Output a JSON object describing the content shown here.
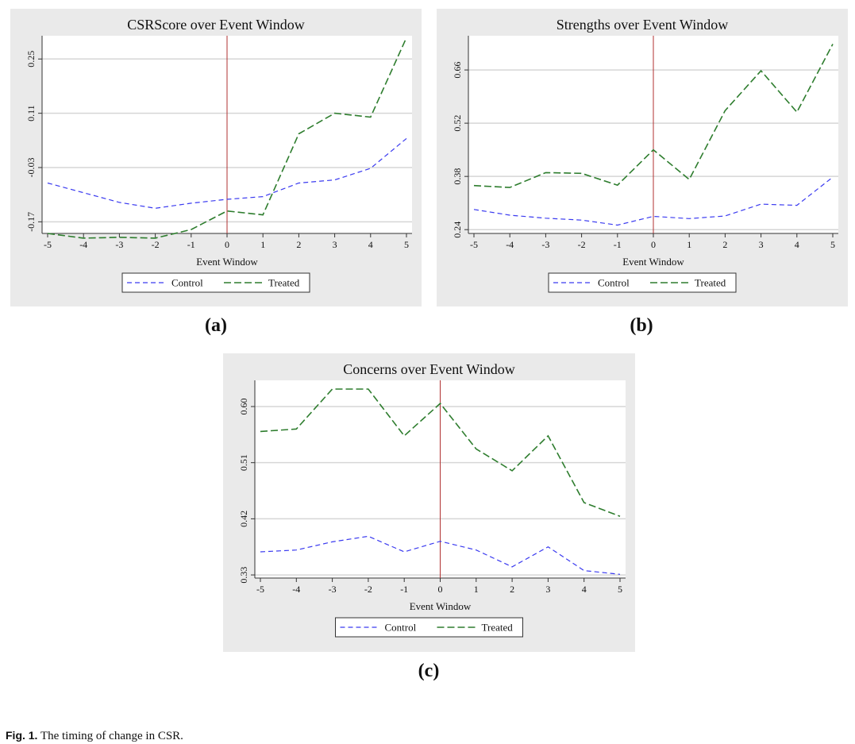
{
  "figure": {
    "caption_label": "Fig. 1.",
    "caption_text": "The timing of change in CSR."
  },
  "colors": {
    "control": "#3a3af0",
    "treated": "#2e7d2e",
    "event_line": "#b03030"
  },
  "chart_data": [
    {
      "id": "a",
      "sublabel": "(a)",
      "type": "line",
      "title": "CSRScore over Event Window",
      "xlabel": "Event Window",
      "ylabel": "",
      "x": [
        -5,
        -4,
        -3,
        -2,
        -1,
        0,
        1,
        2,
        3,
        4,
        5
      ],
      "xticks": [
        "-5",
        "-4",
        "-3",
        "-2",
        "-1",
        "0",
        "1",
        "2",
        "3",
        "4",
        "5"
      ],
      "yticks": [
        "-0.17",
        "-0.03",
        "0.11",
        "0.25"
      ],
      "ytick_values": [
        -0.17,
        -0.03,
        0.11,
        0.25
      ],
      "ylim": [
        -0.2,
        0.31
      ],
      "event_line_x": 0,
      "grid": true,
      "legend": "bottom",
      "series": [
        {
          "name": "Control",
          "color": "#3a3af0",
          "style": "short-dash",
          "values": [
            -0.07,
            -0.095,
            -0.12,
            -0.135,
            -0.122,
            -0.112,
            -0.105,
            -0.07,
            -0.062,
            -0.032,
            0.045
          ]
        },
        {
          "name": "Treated",
          "color": "#2e7d2e",
          "style": "long-dash",
          "values": [
            -0.2,
            -0.212,
            -0.21,
            -0.212,
            -0.19,
            -0.142,
            -0.152,
            0.057,
            0.11,
            0.1,
            0.305
          ]
        }
      ]
    },
    {
      "id": "b",
      "sublabel": "(b)",
      "type": "line",
      "title": "Strengths over Event Window",
      "xlabel": "Event Window",
      "ylabel": "",
      "x": [
        -5,
        -4,
        -3,
        -2,
        -1,
        0,
        1,
        2,
        3,
        4,
        5
      ],
      "xticks": [
        "-5",
        "-4",
        "-3",
        "-2",
        "-1",
        "0",
        "1",
        "2",
        "3",
        "4",
        "5"
      ],
      "yticks": [
        "0.24",
        "0.38",
        "0.52",
        "0.66"
      ],
      "ytick_values": [
        0.24,
        0.38,
        0.52,
        0.66
      ],
      "ylim": [
        0.23,
        0.75
      ],
      "event_line_x": 0,
      "grid": true,
      "legend": "bottom",
      "series": [
        {
          "name": "Control",
          "color": "#3a3af0",
          "style": "short-dash",
          "values": [
            0.293,
            0.278,
            0.27,
            0.265,
            0.252,
            0.275,
            0.269,
            0.276,
            0.307,
            0.304,
            0.378
          ]
        },
        {
          "name": "Treated",
          "color": "#2e7d2e",
          "style": "long-dash",
          "values": [
            0.356,
            0.351,
            0.39,
            0.388,
            0.357,
            0.45,
            0.372,
            0.553,
            0.658,
            0.549,
            0.728
          ]
        }
      ]
    },
    {
      "id": "c",
      "sublabel": "(c)",
      "type": "line",
      "title": "Concerns over Event Window",
      "xlabel": "Event Window",
      "ylabel": "",
      "x": [
        -5,
        -4,
        -3,
        -2,
        -1,
        0,
        1,
        2,
        3,
        4,
        5
      ],
      "xticks": [
        "-5",
        "-4",
        "-3",
        "-2",
        "-1",
        "0",
        "1",
        "2",
        "3",
        "4",
        "5"
      ],
      "yticks": [
        "0.33",
        "0.42",
        "0.51",
        "0.60"
      ],
      "ytick_values": [
        0.33,
        0.42,
        0.51,
        0.6
      ],
      "ylim": [
        0.325,
        0.642
      ],
      "event_line_x": 0,
      "grid": true,
      "legend": "bottom",
      "series": [
        {
          "name": "Control",
          "color": "#3a3af0",
          "style": "short-dash",
          "values": [
            0.367,
            0.37,
            0.383,
            0.392,
            0.367,
            0.384,
            0.37,
            0.343,
            0.375,
            0.337,
            0.331
          ]
        },
        {
          "name": "Treated",
          "color": "#2e7d2e",
          "style": "long-dash",
          "values": [
            0.56,
            0.564,
            0.628,
            0.628,
            0.553,
            0.605,
            0.532,
            0.497,
            0.553,
            0.446,
            0.424
          ]
        }
      ]
    }
  ]
}
